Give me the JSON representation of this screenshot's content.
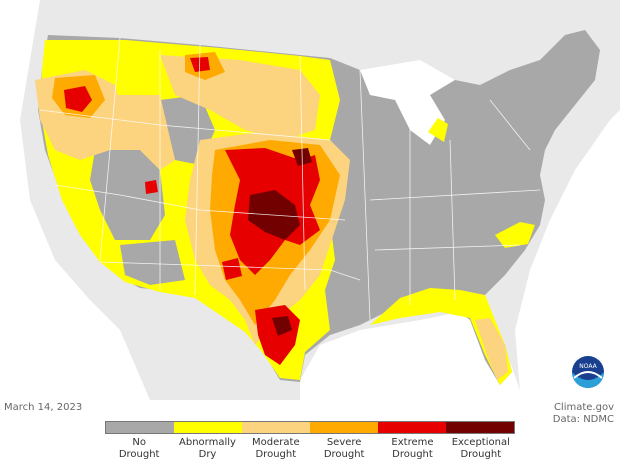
{
  "date": "March 14, 2023",
  "source": {
    "site": "Climate.gov",
    "data": "Data: NDMC"
  },
  "noaa_logo_text": "NOAA",
  "legend": [
    {
      "line1": "No",
      "line2": "Drought",
      "color": "#a8a8a8"
    },
    {
      "line1": "Abnormally",
      "line2": "Dry",
      "color": "#ffff00"
    },
    {
      "line1": "Moderate",
      "line2": "Drought",
      "color": "#fcd37f"
    },
    {
      "line1": "Severe",
      "line2": "Drought",
      "color": "#ffaa00"
    },
    {
      "line1": "Extreme",
      "line2": "Drought",
      "color": "#e60000"
    },
    {
      "line1": "Exceptional",
      "line2": "Drought",
      "color": "#730000"
    }
  ],
  "colors": {
    "background_land": "#e9e9e9",
    "water": "#ffffff",
    "state_borders": "#ffffff"
  }
}
